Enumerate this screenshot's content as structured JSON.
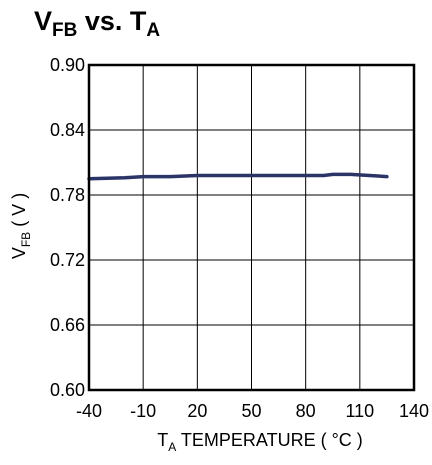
{
  "chart_data": {
    "type": "line",
    "title": {
      "main": "V",
      "sub": "FB",
      "mid": " vs. T",
      "sub2": "A"
    },
    "ylabel": {
      "main": "V",
      "sub": "FB",
      "rest": " ( V )"
    },
    "xlabel": {
      "main": "T",
      "sub": "A",
      "rest": " TEMPERATURE ( °C )"
    },
    "xlim": [
      -40,
      140
    ],
    "ylim": [
      0.6,
      0.9
    ],
    "x_ticks": [
      -40,
      -10,
      20,
      50,
      80,
      110,
      140
    ],
    "x_tick_labels": [
      "-40",
      "-10",
      "20",
      "50",
      "80",
      "110",
      "140"
    ],
    "y_ticks": [
      0.6,
      0.66,
      0.72,
      0.78,
      0.84,
      0.9
    ],
    "y_tick_labels": [
      "0.60",
      "0.66",
      "0.72",
      "0.78",
      "0.84",
      "0.90"
    ],
    "grid": true,
    "series": [
      {
        "color": "#2b3467",
        "x": [
          -40,
          -20,
          -10,
          0,
          5,
          20,
          50,
          80,
          90,
          95,
          105,
          125
        ],
        "y": [
          0.795,
          0.796,
          0.797,
          0.797,
          0.797,
          0.798,
          0.798,
          0.798,
          0.798,
          0.799,
          0.799,
          0.797
        ]
      }
    ]
  }
}
